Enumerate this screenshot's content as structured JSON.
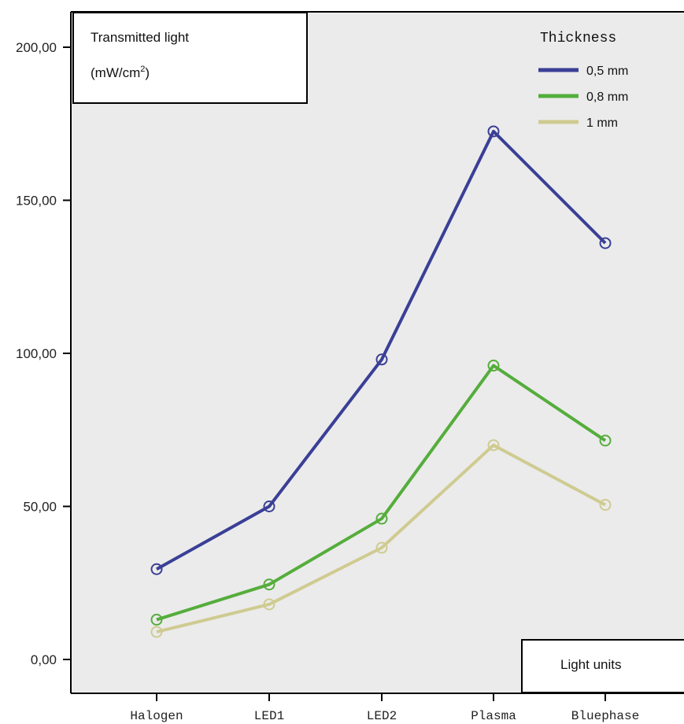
{
  "chart_data": {
    "type": "line",
    "categories": [
      "Halogen",
      "LED1",
      "LED2",
      "Plasma",
      "Bluephase"
    ],
    "ylim": [
      0,
      200
    ],
    "yticks": [
      "0,00",
      "50,00",
      "100,00",
      "150,00",
      "200,00"
    ],
    "ylabel_line1": "Transmitted light",
    "ylabel_line2_main": "(mW/cm",
    "ylabel_line2_sup": "2",
    "ylabel_line2_end": ")",
    "xlabel": "Light units",
    "legend_title": "Thickness",
    "legend_position": "top-right",
    "grid": false,
    "background": "#ebebeb",
    "series": [
      {
        "name": "0,5 mm",
        "color": "#3a3f96",
        "values": [
          29.5,
          50,
          98,
          172.5,
          136
        ]
      },
      {
        "name": "0,8 mm",
        "color": "#55ad3c",
        "values": [
          13,
          24.5,
          46,
          96,
          71.5
        ]
      },
      {
        "name": "1 mm",
        "color": "#cfcb91",
        "values": [
          9,
          18,
          36.5,
          70,
          50.5
        ]
      }
    ]
  }
}
